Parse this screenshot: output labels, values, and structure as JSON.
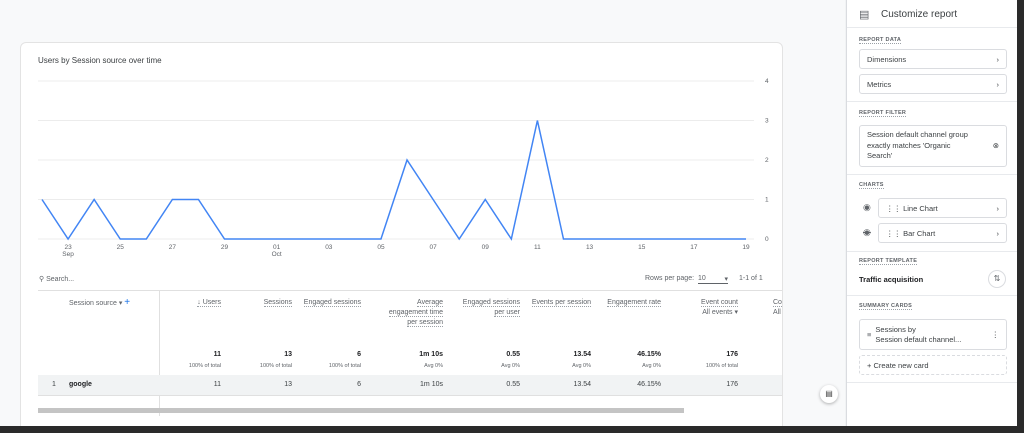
{
  "chart_data": {
    "type": "line",
    "title": "Users by Session source over time",
    "x": [
      "Sep 22",
      "Sep 23",
      "Sep 24",
      "Sep 25",
      "Sep 26",
      "Sep 27",
      "Sep 28",
      "Sep 29",
      "Sep 30",
      "Oct 01",
      "Oct 02",
      "Oct 03",
      "Oct 04",
      "Oct 05",
      "Oct 06",
      "Oct 07",
      "Oct 08",
      "Oct 09",
      "Oct 10",
      "Oct 11",
      "Oct 12",
      "Oct 13",
      "Oct 14",
      "Oct 15",
      "Oct 16",
      "Oct 17",
      "Oct 18",
      "Oct 19"
    ],
    "series": [
      {
        "values": [
          1,
          0,
          1,
          0,
          0,
          1,
          1,
          0,
          0,
          0,
          0,
          0,
          0,
          0,
          2,
          1,
          0,
          1,
          0,
          3,
          0,
          0,
          0,
          0,
          0,
          0,
          0,
          0
        ]
      }
    ],
    "x_tick_labels": [
      {
        "i": 1,
        "label": "23",
        "sub": "Sep"
      },
      {
        "i": 3,
        "label": "25"
      },
      {
        "i": 5,
        "label": "27"
      },
      {
        "i": 7,
        "label": "29"
      },
      {
        "i": 9,
        "label": "01",
        "sub": "Oct"
      },
      {
        "i": 11,
        "label": "03"
      },
      {
        "i": 13,
        "label": "05"
      },
      {
        "i": 15,
        "label": "07"
      },
      {
        "i": 17,
        "label": "09"
      },
      {
        "i": 19,
        "label": "11"
      },
      {
        "i": 21,
        "label": "13"
      },
      {
        "i": 23,
        "label": "15"
      },
      {
        "i": 25,
        "label": "17"
      },
      {
        "i": 27,
        "label": "19"
      }
    ],
    "y_ticks": [
      "0",
      "1",
      "2",
      "3",
      "4"
    ],
    "ylim": [
      0,
      4
    ],
    "grid": true,
    "y_axis_position": "right",
    "color": "#4285f4"
  },
  "table": {
    "search_placeholder": "Search...",
    "rows_per_page_label": "Rows per page:",
    "rows_per_page": "10",
    "range": "1-1 of 1",
    "dimension_header": "Session source",
    "columns": [
      {
        "label": "↓ Users",
        "total": "11",
        "sub": "100% of total"
      },
      {
        "label": "Sessions",
        "total": "13",
        "sub": "100% of total"
      },
      {
        "label": "Engaged sessions",
        "total": "6",
        "sub": "100% of total"
      },
      {
        "label": "Average engagement time per session",
        "total": "1m 10s",
        "sub": "Avg 0%"
      },
      {
        "label": "Engaged sessions per user",
        "total": "0.55",
        "sub": "Avg 0%"
      },
      {
        "label": "Events per session",
        "total": "13.54",
        "sub": "Avg 0%"
      },
      {
        "label": "Engagement rate",
        "total": "46.15%",
        "sub": "Avg 0%"
      },
      {
        "label": "Event count",
        "extra": "All events ▾",
        "total": "176",
        "sub": "100% of total"
      },
      {
        "label": "Cor",
        "extra": "All e"
      }
    ],
    "rows": [
      {
        "index": "1",
        "source": "google",
        "values": [
          "11",
          "13",
          "6",
          "1m 10s",
          "0.55",
          "13.54",
          "46.15%",
          "176"
        ]
      }
    ]
  },
  "panel": {
    "title": "Customize report",
    "report_data": "REPORT DATA",
    "dimensions": "Dimensions",
    "metrics": "Metrics",
    "report_filter": "REPORT FILTER",
    "filter_text": "Session default channel group exactly matches 'Organic Search'",
    "charts": "CHARTS",
    "line_chart": "Line Chart",
    "bar_chart": "Bar Chart",
    "report_template": "REPORT TEMPLATE",
    "template_name": "Traffic acquisition",
    "summary_cards": "SUMMARY CARDS",
    "card_line1": "Sessions by",
    "card_line2": "Session default channel...",
    "create_card": "+ Create new card"
  }
}
